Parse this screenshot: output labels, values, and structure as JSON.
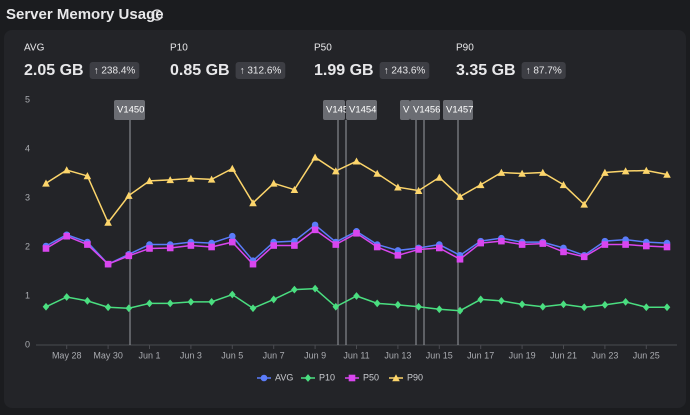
{
  "header": {
    "title": "Server Memory Usage"
  },
  "stats": [
    {
      "label": "AVG",
      "value": "2.05 GB",
      "change": "↑ 238.4%"
    },
    {
      "label": "P10",
      "value": "0.85 GB",
      "change": "↑ 312.6%"
    },
    {
      "label": "P50",
      "value": "1.99 GB",
      "change": "↑ 243.6%"
    },
    {
      "label": "P90",
      "value": "3.35 GB",
      "change": "↑ 87.7%"
    }
  ],
  "chart_data": {
    "type": "line",
    "categories": [
      null,
      "May 28",
      null,
      "May 30",
      null,
      "Jun 1",
      null,
      "Jun 3",
      null,
      "Jun 5",
      null,
      "Jun 7",
      null,
      "Jun 9",
      null,
      "Jun 11",
      null,
      "Jun 13",
      null,
      "Jun 15",
      null,
      "Jun 17",
      null,
      "Jun 19",
      null,
      "Jun 21",
      null,
      "Jun 23",
      null,
      "Jun 25",
      null
    ],
    "series": [
      {
        "name": "AVG",
        "color": "#5b7cfa",
        "marker": "circle",
        "values": [
          2.02,
          2.25,
          2.1,
          1.65,
          1.85,
          2.05,
          2.05,
          2.1,
          2.08,
          2.22,
          1.72,
          2.1,
          2.12,
          2.45,
          2.1,
          2.32,
          2.05,
          1.93,
          1.98,
          2.05,
          1.83,
          2.12,
          2.18,
          2.1,
          2.1,
          1.98,
          1.83,
          2.12,
          2.15,
          2.1,
          2.08
        ]
      },
      {
        "name": "P10",
        "color": "#4ade80",
        "marker": "diamond",
        "values": [
          0.78,
          0.98,
          0.9,
          0.77,
          0.75,
          0.85,
          0.85,
          0.88,
          0.88,
          1.03,
          0.75,
          0.93,
          1.13,
          1.15,
          0.78,
          1.0,
          0.85,
          0.82,
          0.78,
          0.73,
          0.7,
          0.93,
          0.9,
          0.83,
          0.78,
          0.83,
          0.77,
          0.82,
          0.88,
          0.77,
          0.77
        ]
      },
      {
        "name": "P50",
        "color": "#d946ef",
        "marker": "square",
        "values": [
          1.97,
          2.22,
          2.05,
          1.65,
          1.82,
          1.97,
          1.98,
          2.03,
          2.0,
          2.1,
          1.65,
          2.03,
          2.03,
          2.35,
          2.05,
          2.28,
          2.0,
          1.83,
          1.95,
          1.98,
          1.75,
          2.08,
          2.12,
          2.05,
          2.07,
          1.9,
          1.8,
          2.05,
          2.05,
          2.02,
          2.0
        ]
      },
      {
        "name": "P90",
        "color": "#fcd56b",
        "marker": "triangle",
        "values": [
          3.3,
          3.57,
          3.45,
          2.5,
          3.05,
          3.35,
          3.37,
          3.4,
          3.38,
          3.6,
          2.9,
          3.3,
          3.17,
          3.83,
          3.55,
          3.75,
          3.5,
          3.22,
          3.15,
          3.42,
          3.03,
          3.27,
          3.52,
          3.5,
          3.52,
          3.27,
          2.87,
          3.52,
          3.55,
          3.56,
          3.48
        ]
      }
    ],
    "annotations": [
      {
        "text": "V1450"
      },
      {
        "text": "V145"
      },
      {
        "text": "V1454"
      },
      {
        "text": "V"
      },
      {
        "text": "V1456"
      },
      {
        "text": "V1457"
      }
    ],
    "ylim": [
      0,
      5
    ],
    "yticks": [
      0,
      1,
      2,
      3,
      4,
      5
    ],
    "grid": false,
    "legend": "bottom"
  }
}
